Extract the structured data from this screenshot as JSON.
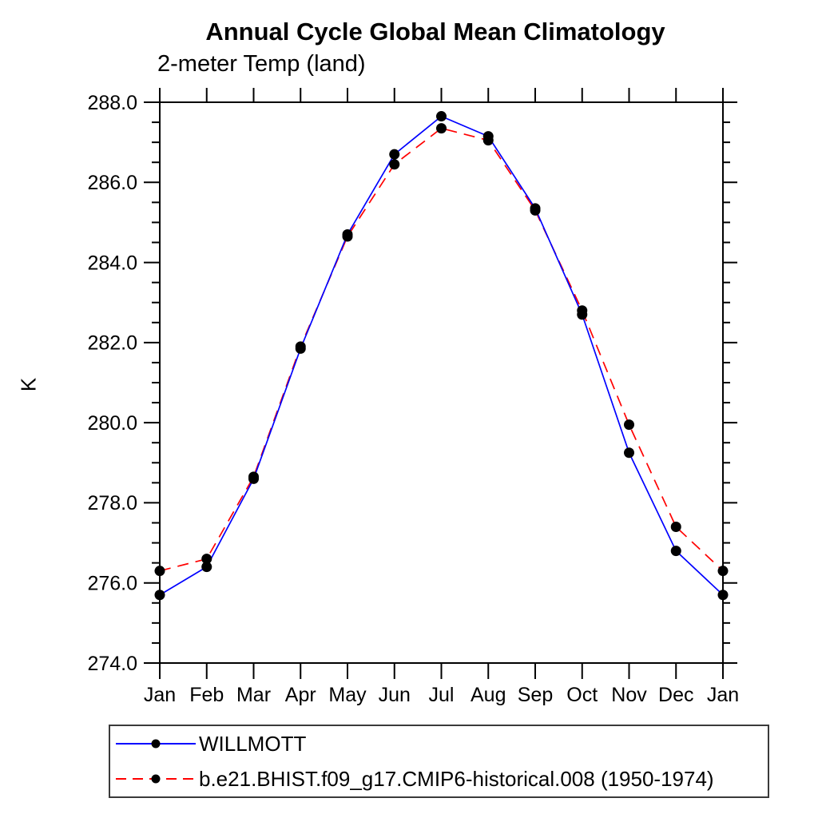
{
  "chart_data": {
    "type": "line",
    "title": "Annual Cycle Global Mean Climatology",
    "subtitle": "2-meter Temp (land)",
    "ylabel": "K",
    "xlabel": "",
    "x_categories": [
      "Jan",
      "Feb",
      "Mar",
      "Apr",
      "May",
      "Jun",
      "Jul",
      "Aug",
      "Sep",
      "Oct",
      "Nov",
      "Dec",
      "Jan"
    ],
    "ylim": [
      274.0,
      288.0
    ],
    "y_major_step": 2.0,
    "y_minor_step": 0.5,
    "y_tick_labels": [
      "274.0",
      "276.0",
      "278.0",
      "280.0",
      "282.0",
      "284.0",
      "286.0",
      "288.0"
    ],
    "grid": false,
    "legend_position": "bottom-left",
    "axis_color": "#000000",
    "marker_color": "#000000",
    "series": [
      {
        "name": "WILLMOTT",
        "color": "#0000ff",
        "style": "solid",
        "marker": "filled-circle",
        "values": [
          275.7,
          276.4,
          278.6,
          281.85,
          284.7,
          286.7,
          287.65,
          287.15,
          285.35,
          282.7,
          279.25,
          276.8,
          275.7
        ]
      },
      {
        "name": "b.e21.BHIST.f09_g17.CMIP6-historical.008 (1950-1974)",
        "color": "#ff0000",
        "style": "dashed",
        "marker": "filled-circle",
        "values": [
          276.3,
          276.6,
          278.65,
          281.9,
          284.65,
          286.45,
          287.35,
          287.05,
          285.3,
          282.8,
          279.95,
          277.4,
          276.3
        ]
      }
    ]
  }
}
